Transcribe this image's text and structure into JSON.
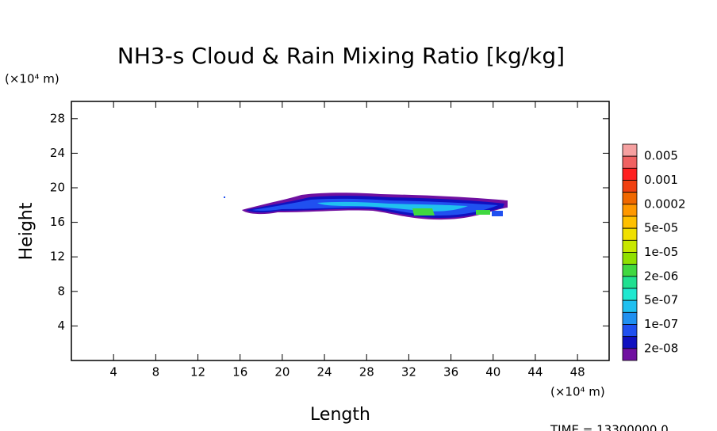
{
  "chart_data": {
    "type": "contour",
    "title": "NH3-s Cloud & Rain Mixing Ratio [kg/kg]",
    "x_label": "Length",
    "y_label": "Height",
    "x_unit": "(×10⁴ m)",
    "y_unit": "(×10⁴ m)",
    "footer": "TIME = 13300000.0",
    "xlim": [
      0,
      51
    ],
    "xticks": [
      4,
      8,
      12,
      16,
      20,
      24,
      28,
      32,
      36,
      40,
      44,
      48
    ],
    "ylim": [
      0,
      30
    ],
    "yticks": [
      4,
      8,
      12,
      16,
      20,
      24,
      28
    ],
    "colorbar": {
      "colors": [
        "#f5a0a0",
        "#f06262",
        "#ff2020",
        "#f04010",
        "#f06800",
        "#ff9800",
        "#ffc000",
        "#f0e000",
        "#c8e800",
        "#90e000",
        "#40d840",
        "#20e090",
        "#20e8d0",
        "#20c0f0",
        "#2090f0",
        "#2050f0",
        "#1010c0",
        "#7010a0"
      ],
      "labels": [
        "0.005",
        "0.001",
        "0.0002",
        "5e-05",
        "1e-05",
        "2e-06",
        "5e-07",
        "1e-07",
        "2e-08"
      ]
    }
  }
}
